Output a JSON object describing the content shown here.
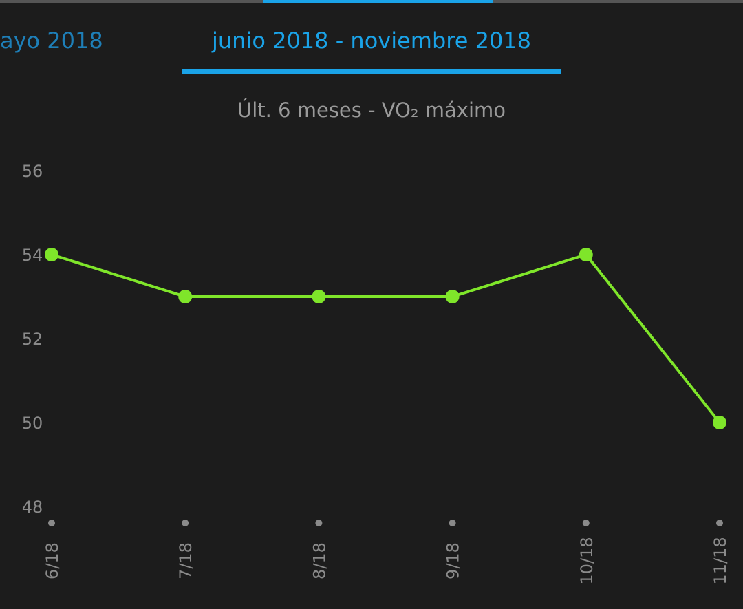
{
  "tabs": [
    "ayo 2018",
    "junio 2018 - noviembre 2018"
  ],
  "chart_data": {
    "type": "line",
    "title": "Últ. 6 meses - VO₂ máximo",
    "categories": [
      "6/18",
      "7/18",
      "8/18",
      "9/18",
      "10/18",
      "11/18"
    ],
    "values": [
      54,
      53,
      53,
      53,
      54,
      50
    ],
    "color": "#7fe52a",
    "ylim": [
      48,
      56
    ],
    "yticks": [
      48,
      50,
      52,
      54,
      56
    ],
    "grid": false
  }
}
